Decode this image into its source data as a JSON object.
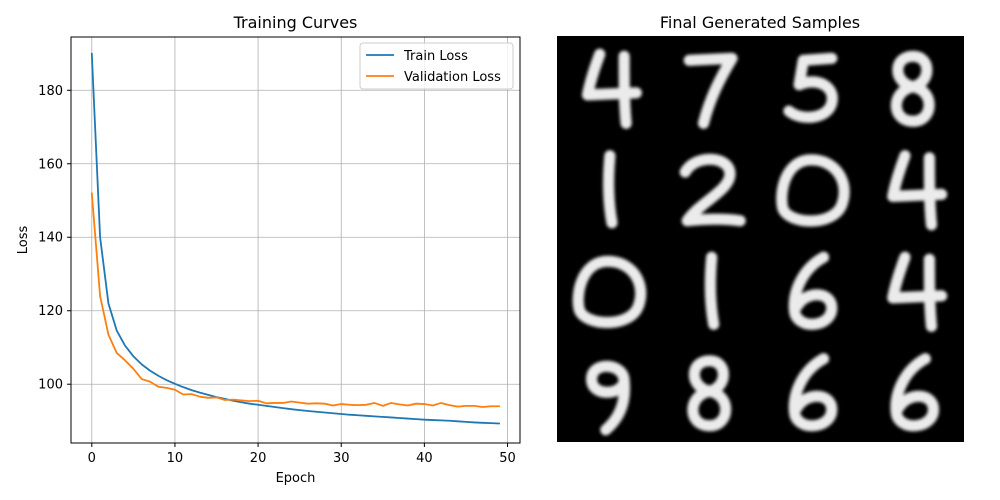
{
  "chart_data": [
    {
      "type": "line",
      "title": "Training Curves",
      "xlabel": "Epoch",
      "ylabel": "Loss",
      "xlim": [
        -2.5,
        51.5
      ],
      "ylim": [
        84,
        194.5
      ],
      "xticks": [
        0,
        10,
        20,
        30,
        40,
        50
      ],
      "yticks": [
        100,
        120,
        140,
        160,
        180
      ],
      "grid": true,
      "legend_position": "top-right",
      "series": [
        {
          "name": "Train Loss",
          "color": "#1f77b4",
          "x": [
            0,
            1,
            2,
            3,
            4,
            5,
            6,
            7,
            8,
            9,
            10,
            11,
            12,
            13,
            14,
            15,
            16,
            17,
            18,
            19,
            20,
            21,
            22,
            23,
            24,
            25,
            26,
            27,
            28,
            29,
            30,
            31,
            32,
            33,
            34,
            35,
            36,
            37,
            38,
            39,
            40,
            41,
            42,
            43,
            44,
            45,
            46,
            47,
            48,
            49
          ],
          "values": [
            190,
            140,
            122,
            114.6,
            110.5,
            107.6,
            105.4,
            103.7,
            102.3,
            101.1,
            100.1,
            99.2,
            98.4,
            97.7,
            97.1,
            96.5,
            96,
            95.5,
            95.1,
            94.7,
            94.4,
            94.1,
            93.8,
            93.5,
            93.2,
            92.95,
            92.7,
            92.5,
            92.3,
            92.1,
            91.9,
            91.7,
            91.55,
            91.4,
            91.25,
            91.1,
            90.95,
            90.8,
            90.65,
            90.5,
            90.35,
            90.25,
            90.15,
            90.05,
            89.9,
            89.75,
            89.6,
            89.5,
            89.4,
            89.3
          ]
        },
        {
          "name": "Validation Loss",
          "color": "#ff7f0e",
          "x": [
            0,
            1,
            2,
            3,
            4,
            5,
            6,
            7,
            8,
            9,
            10,
            11,
            12,
            13,
            14,
            15,
            16,
            17,
            18,
            19,
            20,
            21,
            22,
            23,
            24,
            25,
            26,
            27,
            28,
            29,
            30,
            31,
            32,
            33,
            34,
            35,
            36,
            37,
            38,
            39,
            40,
            41,
            42,
            43,
            44,
            45,
            46,
            47,
            48,
            49
          ],
          "values": [
            152,
            124,
            113.5,
            108.5,
            106.5,
            104.2,
            101.4,
            100.7,
            99.3,
            99,
            98.5,
            97.2,
            97.3,
            96.6,
            96.3,
            96.4,
            95.7,
            95.8,
            95.6,
            95.4,
            95.5,
            94.8,
            94.9,
            94.9,
            95.3,
            95,
            94.7,
            94.8,
            94.7,
            94.2,
            94.6,
            94.4,
            94.3,
            94.4,
            94.9,
            94.1,
            94.9,
            94.5,
            94.2,
            94.7,
            94.6,
            94.2,
            94.9,
            94.3,
            93.9,
            94.1,
            94.1,
            93.8,
            94.0,
            94.0
          ]
        }
      ]
    },
    {
      "type": "heatmap",
      "title": "Final Generated Samples",
      "grid_rows": 4,
      "grid_cols": 4,
      "background": "#000000",
      "digits": [
        [
          "4",
          "7",
          "5",
          "8"
        ],
        [
          "1",
          "2",
          "0",
          "4"
        ],
        [
          "0",
          "1",
          "6",
          "4"
        ],
        [
          "9",
          "8",
          "6",
          "6"
        ]
      ]
    }
  ]
}
